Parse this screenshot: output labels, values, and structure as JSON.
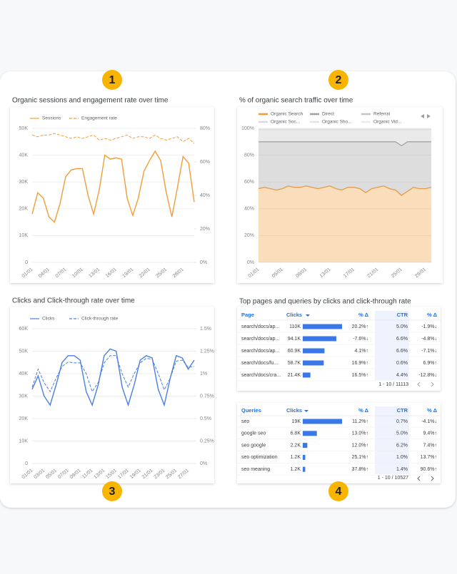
{
  "badges": [
    "1",
    "2",
    "3",
    "4"
  ],
  "chart_data": [
    {
      "type": "line",
      "title": "Organic sessions and engagement rate over time",
      "categories": [
        "01/01",
        null,
        null,
        "04/01",
        null,
        null,
        "07/01",
        null,
        null,
        "10/01",
        null,
        null,
        "13/01",
        null,
        null,
        "16/01",
        null,
        null,
        "19/01",
        null,
        null,
        "22/01",
        null,
        null,
        "25/01",
        null,
        null,
        "28/01",
        null,
        null
      ],
      "series": [
        {
          "name": "Sessions",
          "color": "#f29d38",
          "values": [
            18000,
            26000,
            24000,
            17000,
            15000,
            22000,
            32000,
            34500,
            35000,
            35000,
            25000,
            18000,
            27000,
            40000,
            38500,
            39000,
            38500,
            24000,
            17500,
            24000,
            34000,
            38000,
            41500,
            38000,
            26000,
            17000,
            28000,
            39500,
            37000,
            22500
          ]
        },
        {
          "name": "Engagement rate",
          "color": "#f29d38",
          "dash": true,
          "axis": "y2",
          "values": [
            76,
            75,
            76,
            76,
            77,
            76,
            75,
            74,
            75,
            74,
            75,
            76,
            73,
            74,
            73,
            74,
            75,
            76,
            74,
            75,
            75,
            74,
            76,
            74,
            73,
            74,
            75,
            72,
            74,
            71
          ]
        }
      ],
      "ylim": [
        0,
        50000
      ],
      "yticks": [
        0,
        {
          "value": 10000,
          "label": "10K"
        },
        {
          "value": 20000,
          "label": "20K"
        },
        {
          "value": 30000,
          "label": "30K"
        },
        {
          "value": 40000,
          "label": "40K"
        },
        {
          "value": 50000,
          "label": "50K"
        }
      ],
      "y2lim": [
        0,
        80
      ],
      "y2ticks": [
        {
          "value": 0,
          "label": "0%"
        },
        {
          "value": 20,
          "label": "20%"
        },
        {
          "value": 40,
          "label": "40%"
        },
        {
          "value": 60,
          "label": "60%"
        },
        {
          "value": 80,
          "label": "80%"
        }
      ],
      "grid": true,
      "legend": "top"
    },
    {
      "type": "stacked_area",
      "title": "% of organic search traffic over time",
      "categories": [
        "01/01",
        null,
        null,
        null,
        "05/01",
        null,
        null,
        null,
        "09/01",
        null,
        null,
        null,
        "13/01",
        null,
        null,
        null,
        "17/01",
        null,
        null,
        null,
        "21/01",
        null,
        null,
        null,
        "25/01",
        null,
        null,
        null,
        "29/01",
        null
      ],
      "series": [
        {
          "name": "Organic Search",
          "color": "#f29d38",
          "values": [
            55,
            56,
            55,
            54,
            55,
            57,
            56,
            56,
            57,
            56,
            55,
            56,
            57,
            55,
            54,
            56,
            56,
            55,
            52,
            55,
            56,
            57,
            55,
            54,
            50,
            53,
            56,
            55,
            55,
            56
          ]
        },
        {
          "name": "Direct",
          "color": "#9e9e9e",
          "values": [
            35,
            34,
            35,
            36,
            35,
            33,
            34,
            34,
            33,
            34,
            35,
            34,
            33,
            35,
            36,
            34,
            34,
            35,
            38,
            35,
            34,
            33,
            35,
            36,
            37,
            37,
            34,
            35,
            35,
            34
          ]
        },
        {
          "name": "Referral",
          "color": "#c4c4c4",
          "values": [
            9,
            9,
            9,
            9,
            9,
            9,
            9,
            9,
            9,
            9,
            9,
            9,
            9,
            9,
            9,
            9,
            9,
            9,
            9,
            9,
            9,
            9,
            9,
            9,
            12,
            9,
            9,
            9,
            9,
            9
          ]
        },
        {
          "name": "Organic Soc...",
          "color": "#d9d9d9",
          "values": [
            0.4,
            0.4,
            0.4,
            0.4,
            0.4,
            0.4,
            0.4,
            0.4,
            0.4,
            0.4,
            0.4,
            0.4,
            0.4,
            0.4,
            0.4,
            0.4,
            0.4,
            0.4,
            0.4,
            0.4,
            0.4,
            0.4,
            0.4,
            0.4,
            0.4,
            0.4,
            0.4,
            0.4,
            0.4,
            0.4
          ]
        },
        {
          "name": "Organic Sho...",
          "color": "#e3e3e3",
          "values": [
            0.3,
            0.3,
            0.3,
            0.3,
            0.3,
            0.3,
            0.3,
            0.3,
            0.3,
            0.3,
            0.3,
            0.3,
            0.3,
            0.3,
            0.3,
            0.3,
            0.3,
            0.3,
            0.3,
            0.3,
            0.3,
            0.3,
            0.3,
            0.3,
            0.3,
            0.3,
            0.3,
            0.3,
            0.3,
            0.3
          ]
        },
        {
          "name": "Organic Vid...",
          "color": "#ececec",
          "values": [
            0.3,
            0.3,
            0.3,
            0.3,
            0.3,
            0.3,
            0.3,
            0.3,
            0.3,
            0.3,
            0.3,
            0.3,
            0.3,
            0.3,
            0.3,
            0.3,
            0.3,
            0.3,
            0.3,
            0.3,
            0.3,
            0.3,
            0.3,
            0.3,
            0.3,
            0.3,
            0.3,
            0.3,
            0.3,
            0.3
          ]
        }
      ],
      "ylim": [
        0,
        100
      ],
      "yticks": [
        {
          "value": 0,
          "label": "0%"
        },
        {
          "value": 20,
          "label": "20%"
        },
        {
          "value": 40,
          "label": "40%"
        },
        {
          "value": 60,
          "label": "60%"
        },
        {
          "value": 80,
          "label": "80%"
        },
        {
          "value": 100,
          "label": "100%"
        }
      ],
      "grid": true,
      "legend": "top"
    },
    {
      "type": "line",
      "title": "Clicks and Click-through rate over time",
      "categories": [
        "01/01",
        null,
        "03/01",
        null,
        "05/01",
        null,
        "07/01",
        null,
        "09/01",
        null,
        "11/01",
        null,
        "13/01",
        null,
        "15/01",
        null,
        "17/01",
        null,
        "19/01",
        null,
        "21/01",
        null,
        "23/01",
        null,
        "25/01",
        null,
        "27/01",
        null
      ],
      "series": [
        {
          "name": "Clicks",
          "color": "#4a7fe0",
          "values": [
            33000,
            39000,
            30000,
            26000,
            35000,
            45000,
            48000,
            48000,
            46000,
            32000,
            26000,
            35000,
            48000,
            51000,
            50000,
            34000,
            26000,
            35000,
            46000,
            48000,
            47000,
            33000,
            26000,
            38000,
            48000,
            47000,
            42000,
            46000
          ]
        },
        {
          "name": "Click-through rate",
          "color": "#4a7fe0",
          "dash": true,
          "axis": "y2",
          "values": [
            0.85,
            1.05,
            0.9,
            0.8,
            0.95,
            1.08,
            1.13,
            1.12,
            1.12,
            1.0,
            0.8,
            0.9,
            1.12,
            1.2,
            1.2,
            1.0,
            0.85,
            1.0,
            1.12,
            1.17,
            1.16,
            1.0,
            0.82,
            0.95,
            1.14,
            1.15,
            1.07,
            1.08
          ]
        }
      ],
      "ylim": [
        0,
        60000
      ],
      "yticks": [
        0,
        {
          "value": 10000,
          "label": "10K"
        },
        {
          "value": 20000,
          "label": "20K"
        },
        {
          "value": 30000,
          "label": "30K"
        },
        {
          "value": 40000,
          "label": "40K"
        },
        {
          "value": 50000,
          "label": "50K"
        },
        {
          "value": 60000,
          "label": "60K"
        }
      ],
      "y2lim": [
        0,
        1.5
      ],
      "y2ticks": [
        {
          "value": 0,
          "label": "0%"
        },
        {
          "value": 0.25,
          "label": "0.25%"
        },
        {
          "value": 0.5,
          "label": "0.5%"
        },
        {
          "value": 0.75,
          "label": "0.75%"
        },
        {
          "value": 1,
          "label": "1%"
        },
        {
          "value": 1.25,
          "label": "1.25%"
        },
        {
          "value": 1.5,
          "label": "1.5%"
        }
      ],
      "grid": true,
      "legend": "top"
    }
  ],
  "tables": {
    "title": "Top pages and queries by clicks and click-through rate",
    "bar_color": "#3b78e7",
    "items": [
      {
        "columns": [
          "Page",
          "Clicks",
          "% Δ",
          "CTR",
          "% Δ"
        ],
        "rows": [
          [
            "search/docs/ap...",
            {
              "value": 110000,
              "label": "110K"
            },
            "20.2%↑",
            "5.0%",
            "-1.9%↓"
          ],
          [
            "search/docs/ap...",
            {
              "value": 94100,
              "label": "94.1K"
            },
            "-7.6%↓",
            "6.6%",
            "-4.8%↓"
          ],
          [
            "search/docs/ap...",
            {
              "value": 60900,
              "label": "60.9K"
            },
            "4.1%↑",
            "6.6%",
            "-7.1%↓"
          ],
          [
            "search/docs/fu...",
            {
              "value": 58700,
              "label": "58.7K"
            },
            "16.9%↑",
            "0.6%",
            "6.9%↑"
          ],
          [
            "search/docs/cra...",
            {
              "value": 21400,
              "label": "21.4K"
            },
            "16.5%↑",
            "4.4%",
            "-12.8%↓"
          ]
        ],
        "pagination": "1 - 10 / 11113"
      },
      {
        "columns": [
          "Queries",
          "Clicks",
          "% Δ",
          "CTR",
          "% Δ"
        ],
        "rows": [
          [
            "seo",
            {
              "value": 19000,
              "label": "19K"
            },
            "11.2%↑",
            "0.7%",
            "-4.1%↓"
          ],
          [
            "google seo",
            {
              "value": 6800,
              "label": "6.8K"
            },
            "13.0%↑",
            "5.0%",
            "9.4%↑"
          ],
          [
            "seo google",
            {
              "value": 2200,
              "label": "2.2K"
            },
            "12.0%↑",
            "6.2%",
            "7.4%↑"
          ],
          [
            "seo optimization",
            {
              "value": 1200,
              "label": "1.2K"
            },
            "25.1%↑",
            "1.0%",
            "13.7%↑"
          ],
          [
            "seo meaning",
            {
              "value": 1200,
              "label": "1.2K"
            },
            "37.8%↑",
            "1.4%",
            "90.6%↑"
          ]
        ],
        "pagination": "1 - 10 / 10527"
      }
    ]
  }
}
